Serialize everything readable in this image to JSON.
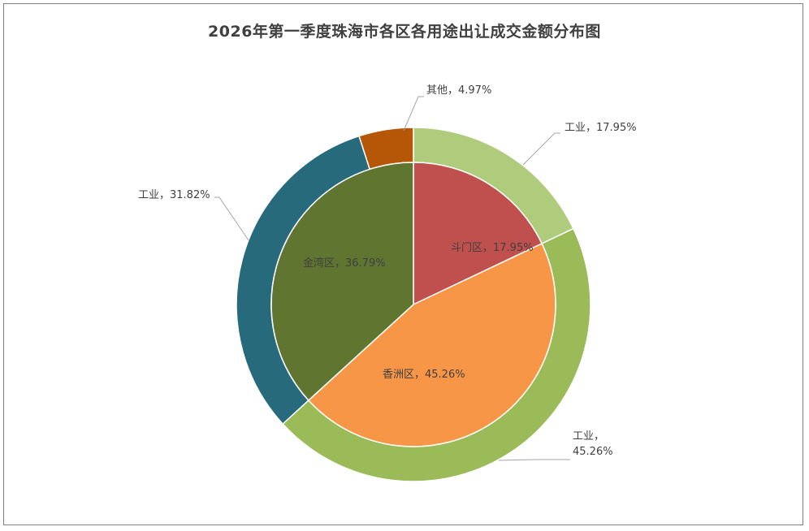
{
  "chart_data": {
    "type": "pie",
    "title": "2026年第一季度珠海市各区各用途出让成交金额分布图",
    "inner_ring": {
      "slices": [
        {
          "label": "斗门区",
          "value": 17.95,
          "display": "斗门区，17.95%",
          "color": "#c0504d"
        },
        {
          "label": "香洲区",
          "value": 45.26,
          "display": "香洲区，45.26%",
          "color": "#f79646"
        },
        {
          "label": "金湾区",
          "value": 36.79,
          "display": "金湾区，36.79%",
          "color": "#5f7530"
        }
      ]
    },
    "outer_ring": {
      "slices": [
        {
          "label": "工业",
          "value": 17.95,
          "display": "工业，17.95%",
          "color": "#afcb7c"
        },
        {
          "label": "工业",
          "value": 45.26,
          "display_line1": "工业，",
          "display_line2": "45.26%",
          "color": "#9bbb59"
        },
        {
          "label": "工业",
          "value": 31.82,
          "display": "工业，31.82%",
          "color": "#276a7c"
        },
        {
          "label": "其他",
          "value": 4.97,
          "display": "其他，4.97%",
          "color": "#b65708"
        }
      ]
    }
  }
}
